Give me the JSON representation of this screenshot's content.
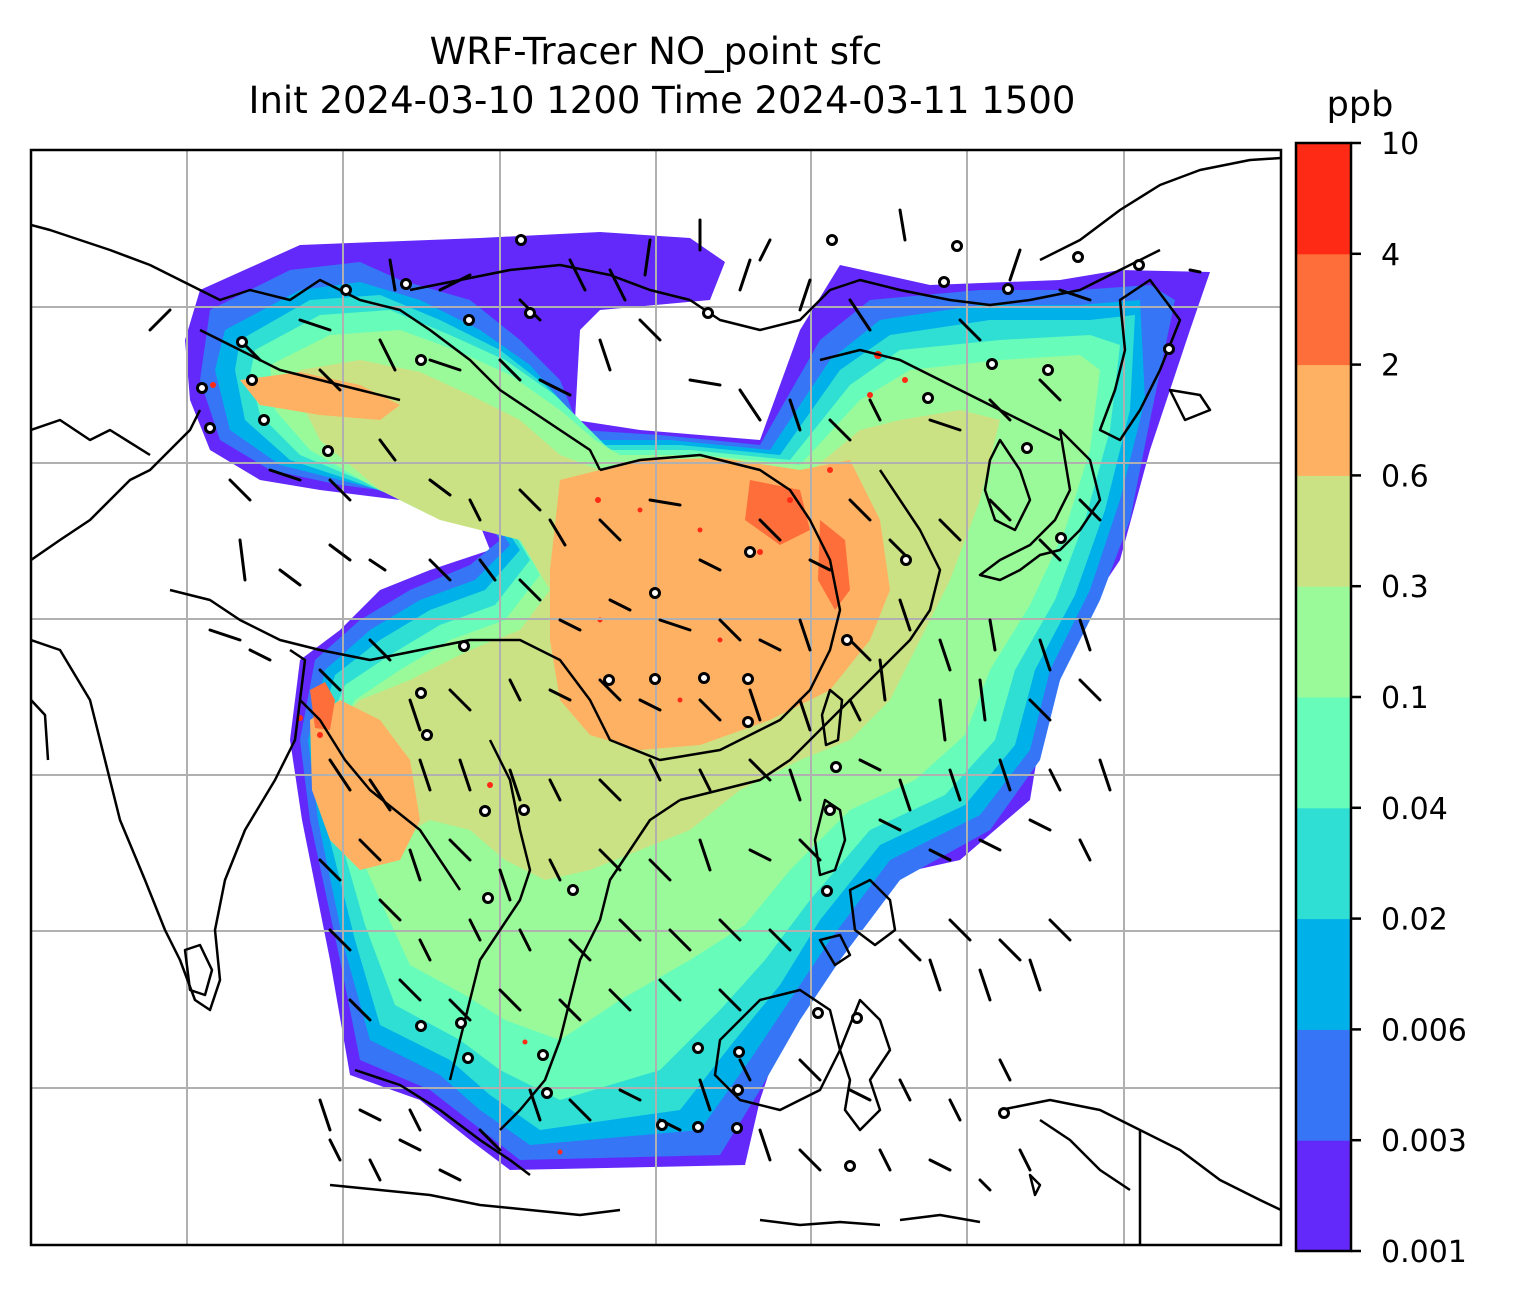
{
  "title_line1": "WRF-Tracer NO_point sfc",
  "title_line2": "Init 2024-03-10 1200 Time 2024-03-11 1500",
  "colorbar": {
    "unit": "ppb",
    "levels": [
      "0.001",
      "0.003",
      "0.006",
      "0.02",
      "0.04",
      "0.1",
      "0.3",
      "0.6",
      "2",
      "4",
      "10"
    ],
    "colors": [
      "#6329fb",
      "#3675f6",
      "#00b1e9",
      "#30dfd4",
      "#67fcba",
      "#9afa9a",
      "#cbe284",
      "#feb163",
      "#fe6e3a",
      "#fe2a15"
    ]
  },
  "colors": {
    "land_outline": "#000000",
    "gridline": "#b0b0b0",
    "background": "#ffffff"
  }
}
